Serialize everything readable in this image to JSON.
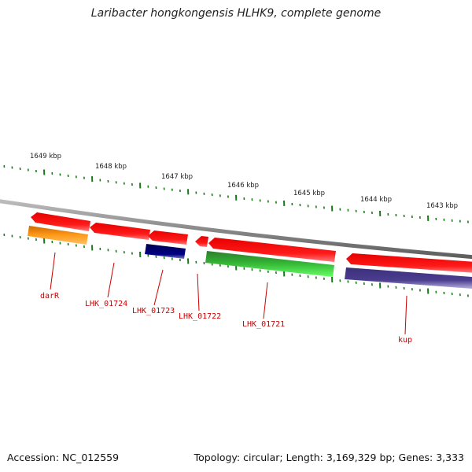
{
  "title": "Laribacter hongkongensis HLHK9, complete genome",
  "footer": {
    "accession": "Accession: NC_012559",
    "summary": "Topology: circular; Length: 3,169,329 bp; Genes: 3,333"
  },
  "ruler": {
    "labels": [
      "1649 kbp",
      "1648 kbp",
      "1647 kbp",
      "1646 kbp",
      "1645 kbp",
      "1644 kbp",
      "1643 kbp"
    ]
  },
  "genes": [
    {
      "name": "darR",
      "color": "#ff9900"
    },
    {
      "name": "LHK_01724",
      "color": "#ff0000"
    },
    {
      "name": "LHK_01723",
      "color": "#000080"
    },
    {
      "name": "LHK_01722",
      "color": "#ff0000"
    },
    {
      "name": "LHK_01721",
      "color": "#33cc33"
    },
    {
      "name": "kup",
      "color": "#4b3d8f"
    }
  ],
  "colors": {
    "backbone": "#8c8c8c",
    "tick": "#1a7a1a",
    "label": "#cc0000"
  }
}
